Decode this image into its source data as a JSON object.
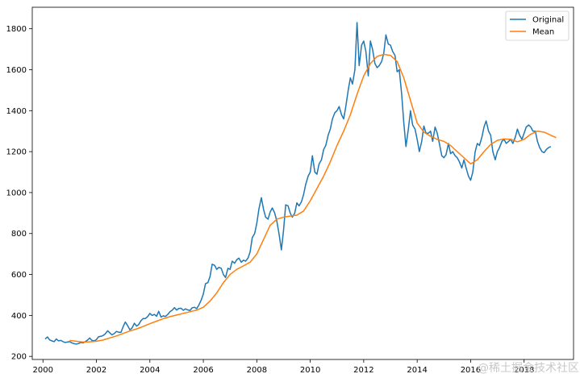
{
  "chart_data": {
    "type": "line",
    "title": "",
    "xlabel": "",
    "ylabel": "",
    "xlim": [
      1999.6,
      2019.85
    ],
    "ylim": [
      185,
      1905
    ],
    "x_ticks": [
      2000,
      2002,
      2004,
      2006,
      2008,
      2010,
      2012,
      2014,
      2016,
      2018
    ],
    "y_ticks": [
      200,
      400,
      600,
      800,
      1000,
      1200,
      1400,
      1600,
      1800
    ],
    "legend_position": "top-right",
    "grid": false,
    "series": [
      {
        "name": "Original",
        "color": "#1f77b4",
        "points": [
          [
            2000.08,
            285
          ],
          [
            2000.17,
            295
          ],
          [
            2000.25,
            280
          ],
          [
            2000.33,
            276
          ],
          [
            2000.42,
            272
          ],
          [
            2000.5,
            285
          ],
          [
            2000.58,
            276
          ],
          [
            2000.67,
            278
          ],
          [
            2000.75,
            272
          ],
          [
            2000.83,
            268
          ],
          [
            2000.92,
            270
          ],
          [
            2001.0,
            272
          ],
          [
            2001.08,
            266
          ],
          [
            2001.17,
            262
          ],
          [
            2001.25,
            260
          ],
          [
            2001.33,
            263
          ],
          [
            2001.42,
            268
          ],
          [
            2001.5,
            266
          ],
          [
            2001.58,
            272
          ],
          [
            2001.67,
            280
          ],
          [
            2001.75,
            290
          ],
          [
            2001.83,
            278
          ],
          [
            2001.92,
            276
          ],
          [
            2002.0,
            282
          ],
          [
            2002.08,
            296
          ],
          [
            2002.17,
            298
          ],
          [
            2002.25,
            302
          ],
          [
            2002.33,
            310
          ],
          [
            2002.42,
            325
          ],
          [
            2002.5,
            315
          ],
          [
            2002.58,
            305
          ],
          [
            2002.67,
            312
          ],
          [
            2002.75,
            322
          ],
          [
            2002.83,
            318
          ],
          [
            2002.92,
            318
          ],
          [
            2003.0,
            345
          ],
          [
            2003.08,
            368
          ],
          [
            2003.17,
            350
          ],
          [
            2003.25,
            330
          ],
          [
            2003.33,
            338
          ],
          [
            2003.42,
            362
          ],
          [
            2003.5,
            348
          ],
          [
            2003.58,
            355
          ],
          [
            2003.67,
            375
          ],
          [
            2003.75,
            385
          ],
          [
            2003.83,
            385
          ],
          [
            2003.92,
            395
          ],
          [
            2004.0,
            410
          ],
          [
            2004.08,
            400
          ],
          [
            2004.17,
            405
          ],
          [
            2004.25,
            396
          ],
          [
            2004.33,
            420
          ],
          [
            2004.42,
            392
          ],
          [
            2004.5,
            398
          ],
          [
            2004.58,
            395
          ],
          [
            2004.67,
            405
          ],
          [
            2004.75,
            418
          ],
          [
            2004.83,
            425
          ],
          [
            2004.92,
            438
          ],
          [
            2005.0,
            426
          ],
          [
            2005.08,
            434
          ],
          [
            2005.17,
            435
          ],
          [
            2005.25,
            425
          ],
          [
            2005.33,
            432
          ],
          [
            2005.42,
            427
          ],
          [
            2005.5,
            424
          ],
          [
            2005.58,
            437
          ],
          [
            2005.67,
            440
          ],
          [
            2005.75,
            433
          ],
          [
            2005.83,
            450
          ],
          [
            2005.92,
            475
          ],
          [
            2006.0,
            505
          ],
          [
            2006.08,
            555
          ],
          [
            2006.17,
            560
          ],
          [
            2006.25,
            590
          ],
          [
            2006.33,
            650
          ],
          [
            2006.42,
            645
          ],
          [
            2006.5,
            625
          ],
          [
            2006.58,
            635
          ],
          [
            2006.67,
            630
          ],
          [
            2006.75,
            600
          ],
          [
            2006.83,
            585
          ],
          [
            2006.92,
            630
          ],
          [
            2007.0,
            625
          ],
          [
            2007.08,
            665
          ],
          [
            2007.17,
            655
          ],
          [
            2007.25,
            672
          ],
          [
            2007.33,
            680
          ],
          [
            2007.42,
            660
          ],
          [
            2007.5,
            670
          ],
          [
            2007.58,
            665
          ],
          [
            2007.67,
            680
          ],
          [
            2007.75,
            710
          ],
          [
            2007.83,
            780
          ],
          [
            2007.92,
            800
          ],
          [
            2008.0,
            850
          ],
          [
            2008.08,
            920
          ],
          [
            2008.17,
            975
          ],
          [
            2008.25,
            920
          ],
          [
            2008.33,
            880
          ],
          [
            2008.42,
            870
          ],
          [
            2008.5,
            905
          ],
          [
            2008.58,
            925
          ],
          [
            2008.67,
            900
          ],
          [
            2008.75,
            860
          ],
          [
            2008.83,
            800
          ],
          [
            2008.92,
            720
          ],
          [
            2009.0,
            815
          ],
          [
            2009.08,
            940
          ],
          [
            2009.17,
            935
          ],
          [
            2009.25,
            900
          ],
          [
            2009.33,
            880
          ],
          [
            2009.42,
            900
          ],
          [
            2009.5,
            950
          ],
          [
            2009.58,
            935
          ],
          [
            2009.67,
            955
          ],
          [
            2009.75,
            990
          ],
          [
            2009.83,
            1040
          ],
          [
            2009.92,
            1080
          ],
          [
            2010.0,
            1100
          ],
          [
            2010.08,
            1180
          ],
          [
            2010.17,
            1100
          ],
          [
            2010.25,
            1090
          ],
          [
            2010.33,
            1140
          ],
          [
            2010.42,
            1160
          ],
          [
            2010.5,
            1210
          ],
          [
            2010.58,
            1230
          ],
          [
            2010.67,
            1280
          ],
          [
            2010.75,
            1310
          ],
          [
            2010.83,
            1360
          ],
          [
            2010.92,
            1390
          ],
          [
            2011.0,
            1400
          ],
          [
            2011.08,
            1420
          ],
          [
            2011.17,
            1380
          ],
          [
            2011.25,
            1360
          ],
          [
            2011.33,
            1420
          ],
          [
            2011.42,
            1500
          ],
          [
            2011.5,
            1560
          ],
          [
            2011.58,
            1530
          ],
          [
            2011.67,
            1600
          ],
          [
            2011.75,
            1830
          ],
          [
            2011.83,
            1620
          ],
          [
            2011.92,
            1720
          ],
          [
            2012.0,
            1740
          ],
          [
            2012.08,
            1690
          ],
          [
            2012.17,
            1570
          ],
          [
            2012.25,
            1740
          ],
          [
            2012.33,
            1700
          ],
          [
            2012.42,
            1630
          ],
          [
            2012.5,
            1610
          ],
          [
            2012.58,
            1620
          ],
          [
            2012.67,
            1640
          ],
          [
            2012.75,
            1680
          ],
          [
            2012.83,
            1770
          ],
          [
            2012.92,
            1725
          ],
          [
            2013.0,
            1720
          ],
          [
            2013.08,
            1690
          ],
          [
            2013.17,
            1670
          ],
          [
            2013.25,
            1590
          ],
          [
            2013.33,
            1600
          ],
          [
            2013.42,
            1480
          ],
          [
            2013.5,
            1340
          ],
          [
            2013.58,
            1225
          ],
          [
            2013.67,
            1310
          ],
          [
            2013.75,
            1400
          ],
          [
            2013.83,
            1330
          ],
          [
            2013.92,
            1310
          ],
          [
            2014.0,
            1260
          ],
          [
            2014.08,
            1200
          ],
          [
            2014.17,
            1250
          ],
          [
            2014.25,
            1325
          ],
          [
            2014.33,
            1290
          ],
          [
            2014.42,
            1290
          ],
          [
            2014.5,
            1300
          ],
          [
            2014.58,
            1250
          ],
          [
            2014.67,
            1320
          ],
          [
            2014.75,
            1290
          ],
          [
            2014.83,
            1240
          ],
          [
            2014.92,
            1180
          ],
          [
            2015.0,
            1170
          ],
          [
            2015.08,
            1185
          ],
          [
            2015.17,
            1240
          ],
          [
            2015.25,
            1190
          ],
          [
            2015.33,
            1200
          ],
          [
            2015.42,
            1180
          ],
          [
            2015.5,
            1170
          ],
          [
            2015.58,
            1150
          ],
          [
            2015.67,
            1120
          ],
          [
            2015.75,
            1160
          ],
          [
            2015.83,
            1120
          ],
          [
            2015.92,
            1080
          ],
          [
            2016.0,
            1060
          ],
          [
            2016.08,
            1100
          ],
          [
            2016.17,
            1200
          ],
          [
            2016.25,
            1240
          ],
          [
            2016.33,
            1230
          ],
          [
            2016.42,
            1270
          ],
          [
            2016.5,
            1320
          ],
          [
            2016.58,
            1350
          ],
          [
            2016.67,
            1300
          ],
          [
            2016.75,
            1280
          ],
          [
            2016.83,
            1200
          ],
          [
            2016.92,
            1160
          ],
          [
            2017.0,
            1200
          ],
          [
            2017.08,
            1220
          ],
          [
            2017.17,
            1250
          ],
          [
            2017.25,
            1260
          ],
          [
            2017.33,
            1240
          ],
          [
            2017.42,
            1250
          ],
          [
            2017.5,
            1260
          ],
          [
            2017.58,
            1240
          ],
          [
            2017.67,
            1270
          ],
          [
            2017.75,
            1310
          ],
          [
            2017.83,
            1280
          ],
          [
            2017.92,
            1260
          ],
          [
            2018.0,
            1290
          ],
          [
            2018.08,
            1320
          ],
          [
            2018.17,
            1330
          ],
          [
            2018.25,
            1320
          ],
          [
            2018.33,
            1300
          ],
          [
            2018.42,
            1300
          ],
          [
            2018.5,
            1250
          ],
          [
            2018.58,
            1220
          ],
          [
            2018.67,
            1200
          ],
          [
            2018.75,
            1195
          ],
          [
            2018.83,
            1210
          ],
          [
            2018.92,
            1220
          ],
          [
            2019.0,
            1225
          ]
        ]
      },
      {
        "name": "Mean",
        "color": "#ff7f0e",
        "points": [
          [
            2001.0,
            278
          ],
          [
            2001.25,
            274
          ],
          [
            2001.5,
            270
          ],
          [
            2001.75,
            271
          ],
          [
            2002.0,
            274
          ],
          [
            2002.25,
            280
          ],
          [
            2002.5,
            290
          ],
          [
            2002.75,
            300
          ],
          [
            2003.0,
            312
          ],
          [
            2003.25,
            324
          ],
          [
            2003.5,
            334
          ],
          [
            2003.75,
            346
          ],
          [
            2004.0,
            360
          ],
          [
            2004.25,
            372
          ],
          [
            2004.5,
            384
          ],
          [
            2004.75,
            394
          ],
          [
            2005.0,
            402
          ],
          [
            2005.25,
            410
          ],
          [
            2005.5,
            418
          ],
          [
            2005.75,
            426
          ],
          [
            2006.0,
            440
          ],
          [
            2006.25,
            470
          ],
          [
            2006.5,
            510
          ],
          [
            2006.75,
            560
          ],
          [
            2007.0,
            600
          ],
          [
            2007.25,
            625
          ],
          [
            2007.5,
            642
          ],
          [
            2007.75,
            660
          ],
          [
            2008.0,
            700
          ],
          [
            2008.25,
            770
          ],
          [
            2008.5,
            840
          ],
          [
            2008.75,
            870
          ],
          [
            2009.0,
            880
          ],
          [
            2009.25,
            885
          ],
          [
            2009.5,
            890
          ],
          [
            2009.75,
            910
          ],
          [
            2010.0,
            960
          ],
          [
            2010.25,
            1020
          ],
          [
            2010.5,
            1080
          ],
          [
            2010.75,
            1150
          ],
          [
            2011.0,
            1230
          ],
          [
            2011.25,
            1300
          ],
          [
            2011.5,
            1380
          ],
          [
            2011.75,
            1480
          ],
          [
            2012.0,
            1570
          ],
          [
            2012.25,
            1630
          ],
          [
            2012.5,
            1665
          ],
          [
            2012.75,
            1675
          ],
          [
            2013.0,
            1670
          ],
          [
            2013.25,
            1640
          ],
          [
            2013.5,
            1560
          ],
          [
            2013.75,
            1450
          ],
          [
            2014.0,
            1340
          ],
          [
            2014.25,
            1295
          ],
          [
            2014.5,
            1275
          ],
          [
            2014.75,
            1260
          ],
          [
            2015.0,
            1250
          ],
          [
            2015.25,
            1230
          ],
          [
            2015.5,
            1200
          ],
          [
            2015.75,
            1170
          ],
          [
            2016.0,
            1140
          ],
          [
            2016.25,
            1160
          ],
          [
            2016.5,
            1200
          ],
          [
            2016.75,
            1235
          ],
          [
            2017.0,
            1255
          ],
          [
            2017.25,
            1262
          ],
          [
            2017.5,
            1260
          ],
          [
            2017.75,
            1248
          ],
          [
            2018.0,
            1260
          ],
          [
            2018.25,
            1285
          ],
          [
            2018.5,
            1300
          ],
          [
            2018.75,
            1295
          ],
          [
            2019.0,
            1280
          ],
          [
            2019.2,
            1268
          ]
        ]
      }
    ]
  },
  "watermark": "@稀土掘金技术社区"
}
